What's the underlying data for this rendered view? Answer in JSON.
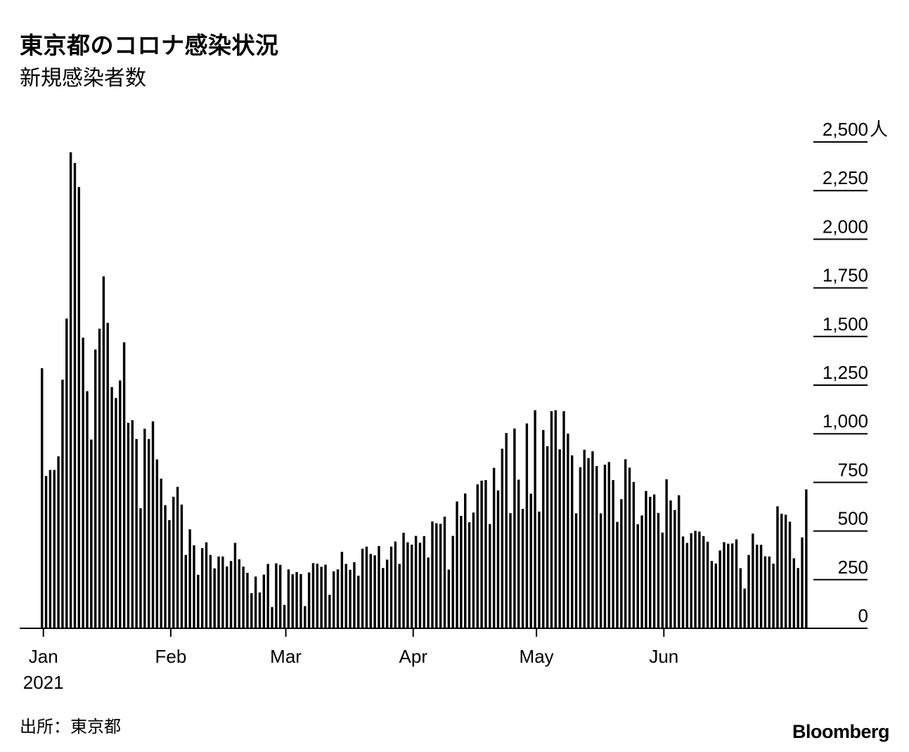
{
  "title": "東京都のコロナ感染状況",
  "subtitle": "新規感染者数",
  "source": "出所：東京都",
  "brand": "Bloomberg",
  "colors": {
    "bars": "#000000",
    "gridlines": "#000000",
    "background": "#ffffff"
  },
  "chart_data": {
    "type": "bar",
    "ylim": [
      0,
      2500
    ],
    "y_unit": "人",
    "y_ticks": [
      {
        "value": 0,
        "label": "0"
      },
      {
        "value": 250,
        "label": "250"
      },
      {
        "value": 500,
        "label": "500"
      },
      {
        "value": 750,
        "label": "750"
      },
      {
        "value": 1000,
        "label": "1,000"
      },
      {
        "value": 1250,
        "label": "1,250"
      },
      {
        "value": 1500,
        "label": "1,500"
      },
      {
        "value": 1750,
        "label": "1,750"
      },
      {
        "value": 2000,
        "label": "2,000"
      },
      {
        "value": 2250,
        "label": "2,250"
      },
      {
        "value": 2500,
        "label": "2,500"
      }
    ],
    "x_ticks": [
      {
        "index": 0,
        "label": "Jan",
        "sublabel": "2021"
      },
      {
        "index": 31,
        "label": "Feb"
      },
      {
        "index": 59,
        "label": "Mar"
      },
      {
        "index": 90,
        "label": "Apr"
      },
      {
        "index": 120,
        "label": "May"
      },
      {
        "index": 151,
        "label": "Jun"
      }
    ],
    "grid": "horizontal lines at y-ticks, right side only",
    "values": [
      1337,
      783,
      814,
      814,
      884,
      1278,
      1592,
      2447,
      2392,
      2268,
      1494,
      1219,
      970,
      1433,
      1540,
      1809,
      1570,
      1240,
      1184,
      1274,
      1470,
      1056,
      1070,
      973,
      617,
      1026,
      973,
      1064,
      868,
      769,
      633,
      556,
      676,
      727,
      636,
      377,
      509,
      427,
      275,
      412,
      442,
      377,
      308,
      369,
      369,
      318,
      346,
      439,
      355,
      317,
      285,
      181,
      266,
      184,
      276,
      331,
      109,
      334,
      326,
      120,
      303,
      278,
      289,
      279,
      114,
      287,
      335,
      332,
      316,
      327,
      172,
      293,
      303,
      393,
      331,
      301,
      340,
      270,
      409,
      420,
      382,
      375,
      423,
      310,
      353,
      420,
      446,
      331,
      491,
      442,
      430,
      475,
      440,
      474,
      364,
      549,
      540,
      537,
      574,
      302,
      475,
      652,
      578,
      693,
      545,
      595,
      740,
      759,
      762,
      536,
      825,
      709,
      923,
      1004,
      592,
      1027,
      764,
      614,
      1053,
      692,
      1121,
      600,
      1019,
      936,
      1116,
      1121,
      920,
      1116,
      1001,
      889,
      591,
      828,
      918,
      875,
      910,
      834,
      591,
      841,
      855,
      762,
      547,
      664,
      869,
      826,
      752,
      535,
      580,
      706,
      676,
      688,
      593,
      492,
      766,
      657,
      608,
      684,
      472,
      439,
      489,
      501,
      497,
      474,
      445,
      346,
      333,
      400,
      443,
      435,
      436,
      457,
      309,
      204,
      377,
      487,
      430,
      429,
      370,
      369,
      332,
      627,
      589,
      584,
      548,
      360,
      310,
      467,
      714
    ]
  }
}
